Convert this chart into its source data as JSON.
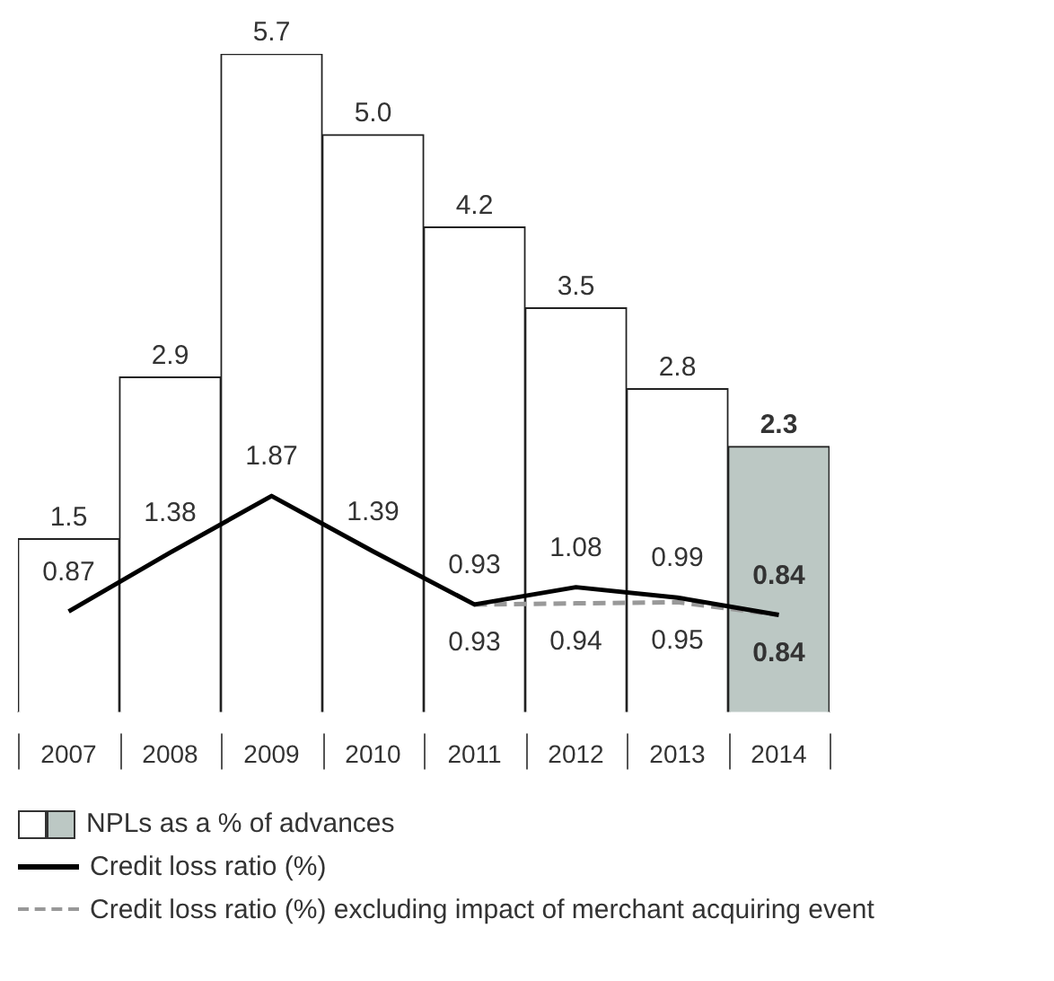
{
  "chart_data": {
    "type": "bar",
    "categories": [
      "2007",
      "2008",
      "2009",
      "2010",
      "2011",
      "2012",
      "2013",
      "2014"
    ],
    "series": [
      {
        "name": "NPLs as a % of advances",
        "colors": [
          "#ffffff",
          "#ffffff",
          "#ffffff",
          "#ffffff",
          "#ffffff",
          "#ffffff",
          "#ffffff",
          "#bcc8c4"
        ],
        "values": [
          1.5,
          2.9,
          5.7,
          5.0,
          4.2,
          3.5,
          2.8,
          2.3
        ],
        "value_labels": [
          "1.5",
          "2.9",
          "5.7",
          "5.0",
          "4.2",
          "3.5",
          "2.8",
          "2.3"
        ]
      },
      {
        "name": "Credit loss ratio (%)",
        "type": "line",
        "color": "#000000",
        "values": [
          0.87,
          1.38,
          1.87,
          1.39,
          0.93,
          1.08,
          0.99,
          0.84
        ],
        "value_labels": [
          "0.87",
          "1.38",
          "1.87",
          "1.39",
          "0.93",
          "1.08",
          "0.99",
          "0.84"
        ]
      },
      {
        "name": "Credit loss ratio (%) excluding impact of merchant acquiring event",
        "type": "line",
        "line_style": "dashed",
        "color": "#999999",
        "values": [
          null,
          null,
          null,
          null,
          0.93,
          0.94,
          0.95,
          0.84
        ],
        "value_labels": [
          null,
          null,
          null,
          null,
          "0.93",
          "0.94",
          "0.95",
          "0.84"
        ]
      }
    ],
    "ylim": [
      0,
      5.7
    ],
    "tick_labels": "x",
    "legend": "bottom",
    "marker": "none"
  }
}
